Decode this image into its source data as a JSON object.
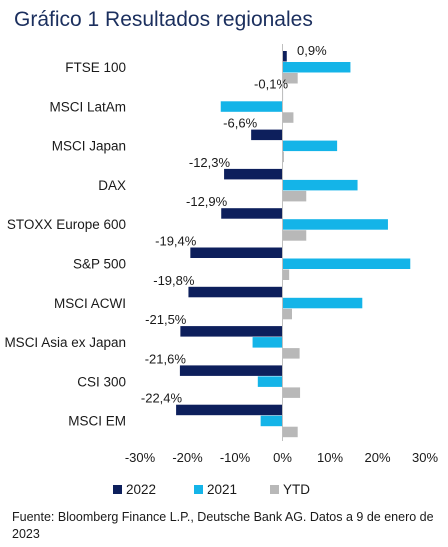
{
  "title": "Gráfico 1 Resultados regionales",
  "source": "Fuente: Bloomberg Finance L.P., Deutsche Bank AG. Datos a 9 de enero de 2023",
  "chart_data": {
    "type": "bar",
    "orientation": "horizontal",
    "categories": [
      "FTSE 100",
      "MSCI LatAm",
      "MSCI Japan",
      "DAX",
      "STOXX Europe 600",
      "S&P 500",
      "MSCI ACWI",
      "MSCI Asia ex Japan",
      "CSI 300",
      "MSCI EM"
    ],
    "series": [
      {
        "name": "2022",
        "color": "#0d1f5c",
        "values": [
          0.9,
          -0.1,
          -6.6,
          -12.3,
          -12.9,
          -19.4,
          -19.8,
          -21.5,
          -21.6,
          -22.4
        ],
        "labels": [
          "0,9%",
          "-0,1%",
          "-6,6%",
          "-12,3%",
          "-12,9%",
          "-19,4%",
          "-19,8%",
          "-21,5%",
          "-21,6%",
          "-22,4%"
        ]
      },
      {
        "name": "2021",
        "color": "#14b4e8",
        "values": [
          14.3,
          -13.0,
          11.5,
          15.8,
          22.2,
          26.9,
          16.8,
          -6.3,
          -5.2,
          -4.6
        ]
      },
      {
        "name": "YTD",
        "color": "#b8b8b8",
        "values": [
          3.2,
          2.3,
          0.3,
          5.0,
          5.0,
          1.4,
          2.0,
          3.6,
          3.7,
          3.2
        ]
      }
    ],
    "xlim": [
      -30,
      30
    ],
    "xticks": [
      "-30%",
      "-20%",
      "-10%",
      "0%",
      "10%",
      "20%",
      "30%"
    ],
    "xtick_values": [
      -30,
      -20,
      -10,
      0,
      10,
      20,
      30
    ],
    "grid": false,
    "legend": "bottom"
  }
}
